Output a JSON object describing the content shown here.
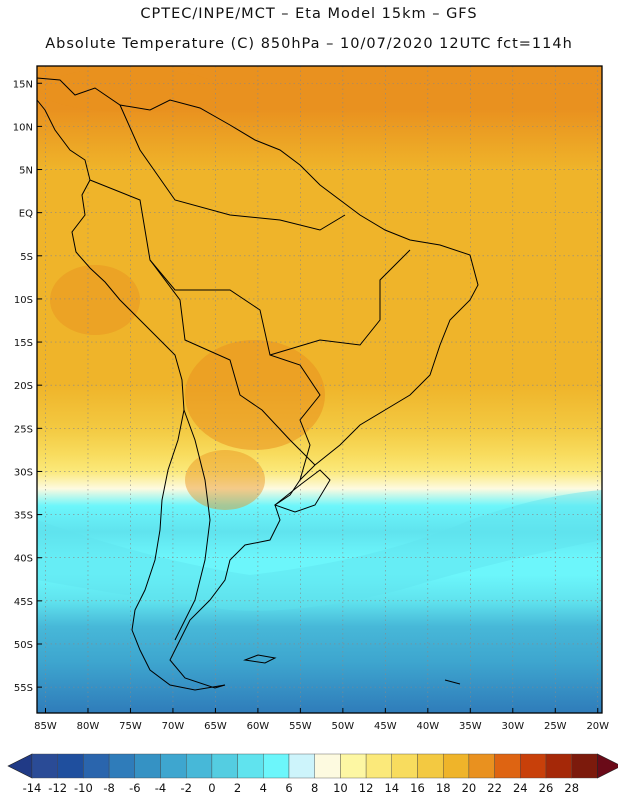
{
  "header": {
    "line1": "CPTEC/INPE/MCT –  Eta Model 15km – GFS",
    "line2": "Absolute Temperature (C) 850hPa – 10/07/2020 12UTC fct=114h"
  },
  "map": {
    "region": "South America",
    "lat_range": [
      -58,
      17
    ],
    "lon_range": [
      -86,
      -19.5
    ],
    "lat_ticks": [
      {
        "value": 15,
        "label": "15N"
      },
      {
        "value": 10,
        "label": "10N"
      },
      {
        "value": 5,
        "label": "5N"
      },
      {
        "value": 0,
        "label": "EQ"
      },
      {
        "value": -5,
        "label": "5S"
      },
      {
        "value": -10,
        "label": "10S"
      },
      {
        "value": -15,
        "label": "15S"
      },
      {
        "value": -20,
        "label": "20S"
      },
      {
        "value": -25,
        "label": "25S"
      },
      {
        "value": -30,
        "label": "30S"
      },
      {
        "value": -35,
        "label": "35S"
      },
      {
        "value": -40,
        "label": "40S"
      },
      {
        "value": -45,
        "label": "45S"
      },
      {
        "value": -50,
        "label": "50S"
      },
      {
        "value": -55,
        "label": "55S"
      }
    ],
    "lon_ticks": [
      {
        "value": -85,
        "label": "85W"
      },
      {
        "value": -80,
        "label": "80W"
      },
      {
        "value": -75,
        "label": "75W"
      },
      {
        "value": -70,
        "label": "70W"
      },
      {
        "value": -65,
        "label": "65W"
      },
      {
        "value": -60,
        "label": "60W"
      },
      {
        "value": -55,
        "label": "55W"
      },
      {
        "value": -50,
        "label": "50W"
      },
      {
        "value": -45,
        "label": "45W"
      },
      {
        "value": -40,
        "label": "40W"
      },
      {
        "value": -35,
        "label": "35W"
      },
      {
        "value": -30,
        "label": "30W"
      },
      {
        "value": -25,
        "label": "25W"
      },
      {
        "value": -20,
        "label": "20W"
      }
    ],
    "temperature_bands_by_latitude": [
      {
        "lat": 17,
        "temp_c": 19
      },
      {
        "lat": 12,
        "temp_c": 18.5
      },
      {
        "lat": 5,
        "temp_c": 17.5
      },
      {
        "lat": 0,
        "temp_c": 17.5
      },
      {
        "lat": -10,
        "temp_c": 17.5
      },
      {
        "lat": -20,
        "temp_c": 17
      },
      {
        "lat": -25,
        "temp_c": 15
      },
      {
        "lat": -28,
        "temp_c": 13
      },
      {
        "lat": -30,
        "temp_c": 10
      },
      {
        "lat": -32,
        "temp_c": 6
      },
      {
        "lat": -34,
        "temp_c": 3
      },
      {
        "lat": -37,
        "temp_c": 1
      },
      {
        "lat": -40,
        "temp_c": 2
      },
      {
        "lat": -42,
        "temp_c": 3
      },
      {
        "lat": -45,
        "temp_c": 0
      },
      {
        "lat": -48,
        "temp_c": -3
      },
      {
        "lat": -52,
        "temp_c": -6
      },
      {
        "lat": -58,
        "temp_c": -9
      }
    ]
  },
  "colorbar": {
    "labels": [
      "-14",
      "-12",
      "-10",
      "-8",
      "-6",
      "-4",
      "-2",
      "0",
      "2",
      "4",
      "6",
      "8",
      "10",
      "12",
      "14",
      "16",
      "18",
      "20",
      "22",
      "24",
      "26",
      "28"
    ],
    "colors": [
      "#2a4b96",
      "#1f4f9e",
      "#2a65ad",
      "#2f7cba",
      "#3592c4",
      "#3ea6cf",
      "#47b8d8",
      "#54cde1",
      "#60e3ee",
      "#6cf6fb",
      "#cdf4fb",
      "#fdfae0",
      "#fdf7a3",
      "#fbe97a",
      "#f8dc5e",
      "#f3c941",
      "#efb42a",
      "#e9911f",
      "#de6412",
      "#c8400a",
      "#a52808",
      "#7c1a0c"
    ],
    "under_color": "#203a86",
    "over_color": "#6a0a18"
  }
}
